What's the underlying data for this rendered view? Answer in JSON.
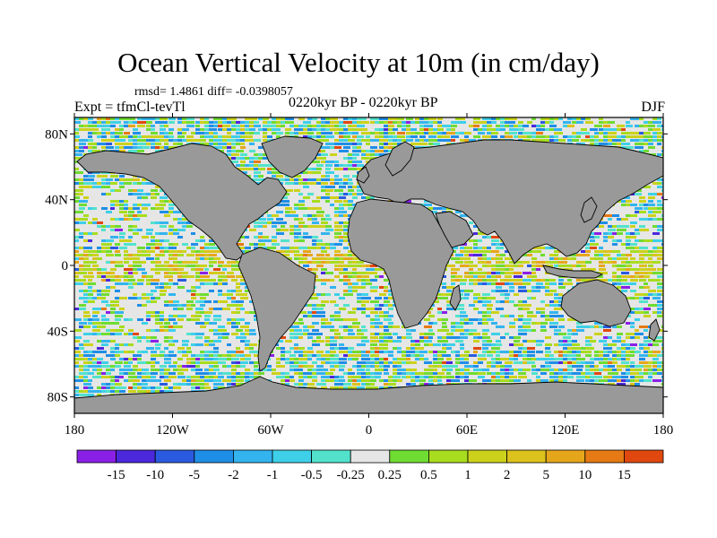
{
  "title": "Ocean Vertical Velocity at 10m (in cm/day)",
  "stats_text": "rmsd= 1.4861 diff= -0.0398057",
  "experiment_text": "Expt = tfmCl-tevTl",
  "period_text": "0220kyr BP - 0220kyr BP",
  "season_text": "DJF",
  "y_ticks": [
    {
      "label": "80N",
      "lat": 80
    },
    {
      "label": "40N",
      "lat": 40
    },
    {
      "label": "0",
      "lat": 0
    },
    {
      "label": "40S",
      "lat": -40
    },
    {
      "label": "80S",
      "lat": -80
    }
  ],
  "x_ticks": [
    {
      "label": "180",
      "lon": -180
    },
    {
      "label": "120W",
      "lon": -120
    },
    {
      "label": "60W",
      "lon": -60
    },
    {
      "label": "0",
      "lon": 0
    },
    {
      "label": "60E",
      "lon": 60
    },
    {
      "label": "120E",
      "lon": 120
    },
    {
      "label": "180",
      "lon": 180
    }
  ],
  "colorbar": {
    "colors": [
      "#8a20e6",
      "#4b28dc",
      "#2a5ae0",
      "#1f8ee6",
      "#33b4ee",
      "#3ed0e8",
      "#52e2cc",
      "#e6e6e6",
      "#6fdc32",
      "#a8dc1e",
      "#ccd21c",
      "#dcc21c",
      "#e6a61c",
      "#e67a14",
      "#e04810"
    ],
    "labels": [
      "-15",
      "-10",
      "-5",
      "-2",
      "-1",
      "-0.5",
      "-0.25",
      "0.25",
      "0.5",
      "1",
      "2",
      "5",
      "10",
      "15"
    ]
  },
  "colors": {
    "land": "#999999",
    "coast": "#000000"
  }
}
